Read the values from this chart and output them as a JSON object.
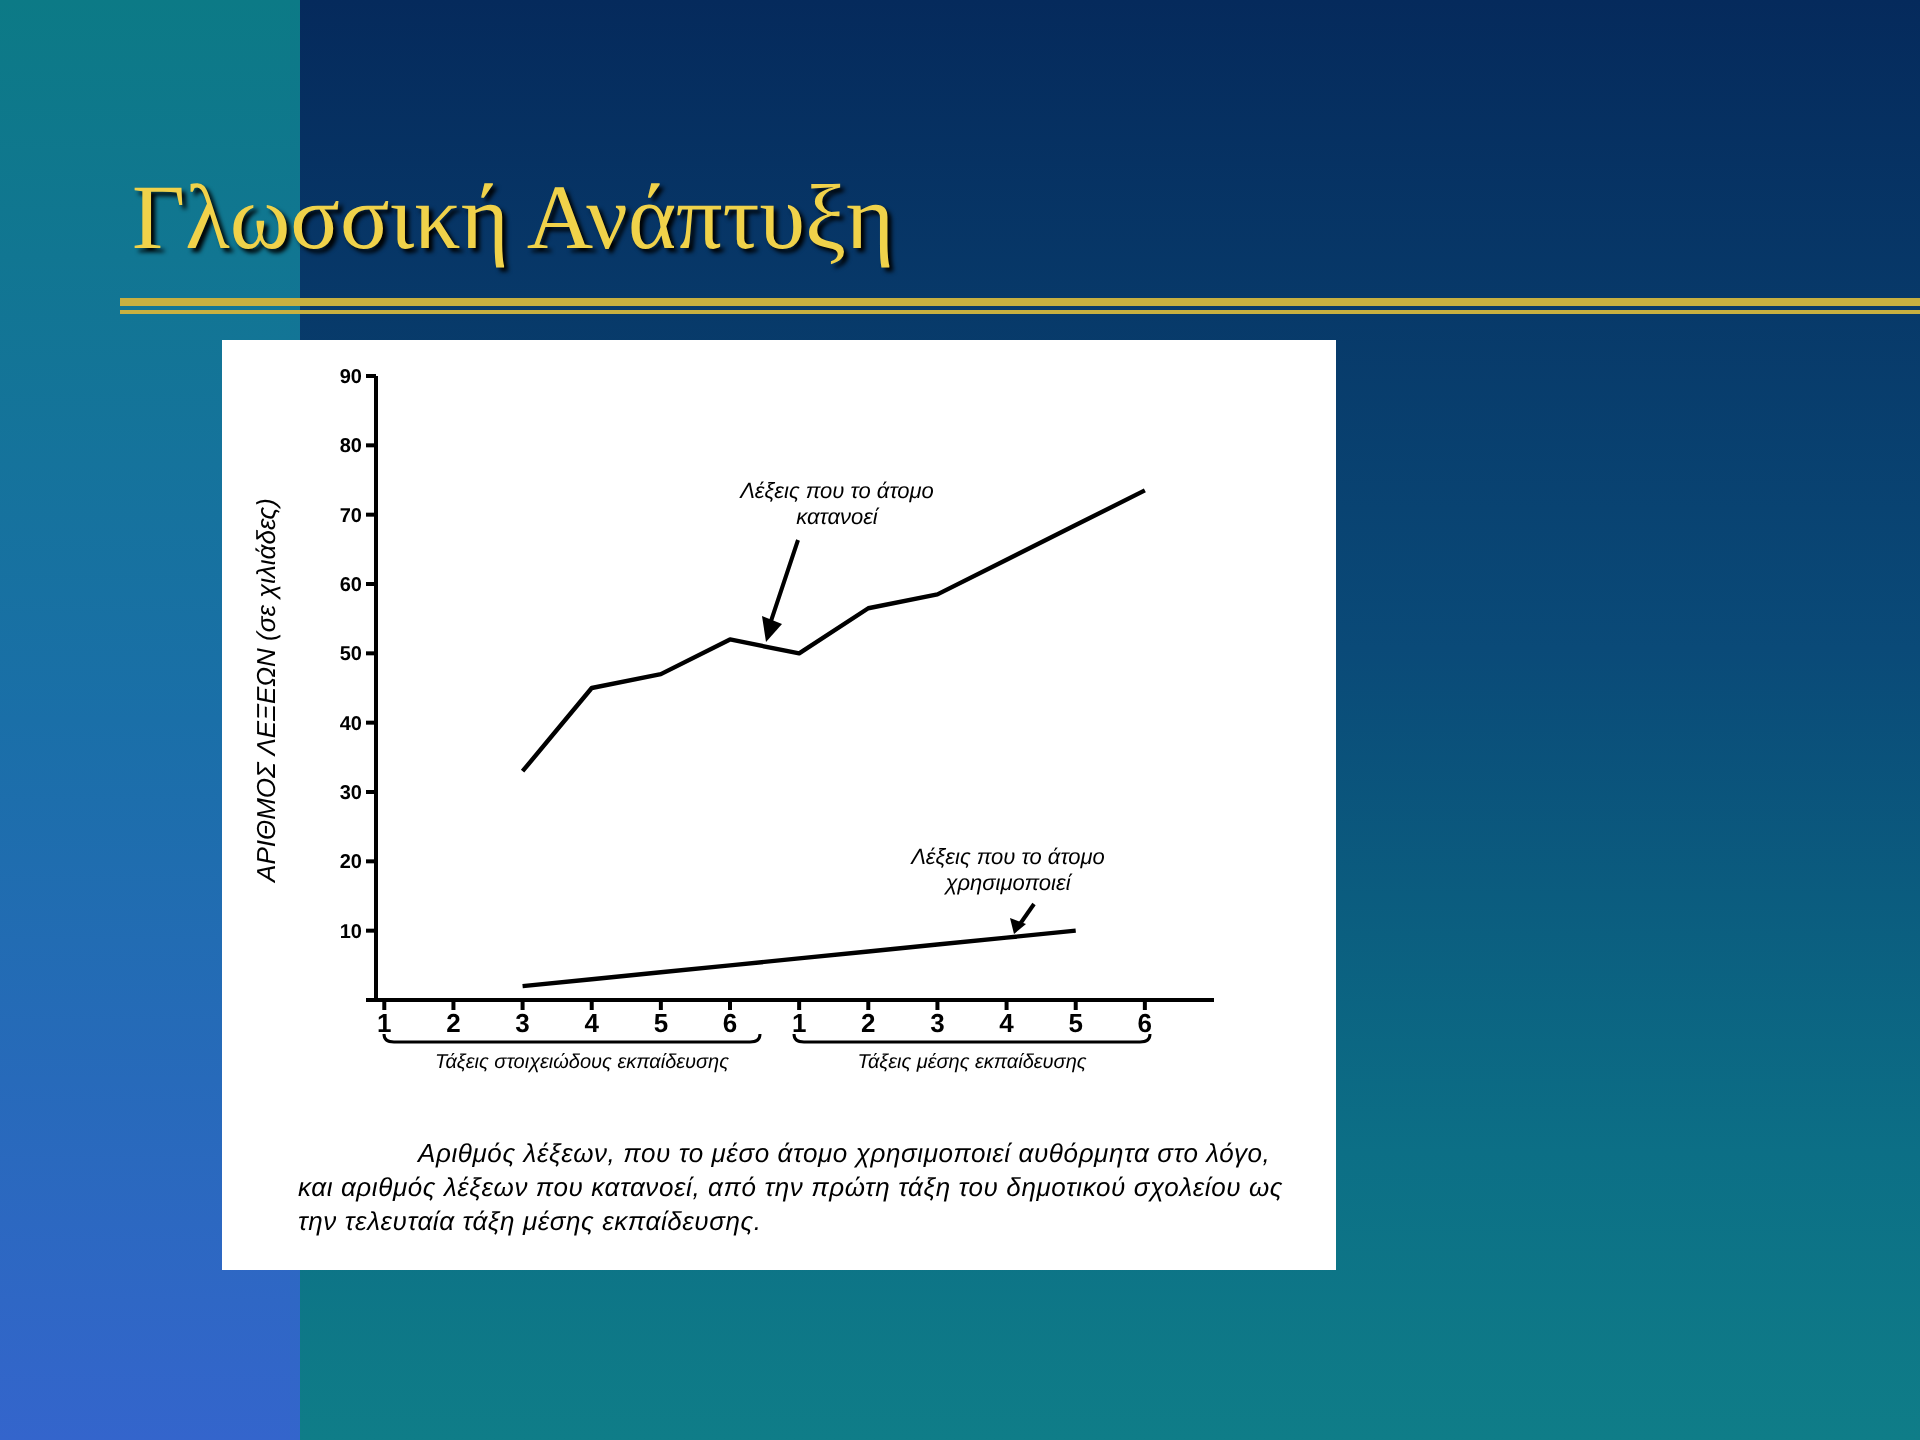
{
  "chart_data": {
    "type": "line",
    "title": "Γλωσσική Ανάπτυξη",
    "ylabel": "ΑΡΙΘΜΟΣ ΛΕΞΕΩΝ (σε χιλιάδες)",
    "categories": [
      "1",
      "2",
      "3",
      "4",
      "5",
      "6",
      "1",
      "2",
      "3",
      "4",
      "5",
      "6"
    ],
    "series": [
      {
        "name": "Λέξεις που το άτομο κατανοεί",
        "color": "#000000",
        "values": [
          null,
          null,
          33,
          45,
          47,
          52,
          50,
          56.5,
          58.5,
          63.5,
          68.5,
          73.5
        ]
      },
      {
        "name": "Λέξεις που το άτομο χρησιμοποιεί",
        "color": "#000000",
        "values": [
          null,
          null,
          2,
          3,
          4,
          5,
          6,
          7,
          8,
          9,
          10,
          null
        ]
      }
    ],
    "ylim": [
      0,
      90
    ],
    "yticks": [
      {
        "value": 0,
        "label": null
      },
      10,
      20,
      30,
      40,
      50,
      60,
      70,
      80,
      90
    ],
    "marker": "none",
    "annotations": [
      "Τάξεις στοιχειώδους εκπαίδευσης",
      "Τάξεις μέσης εκπαίδευσης",
      "Αριθμός λέξεων, που το μέσο άτομο χρησιμοποιεί αυθόρμητα στο λόγο, και αριθμός λέξεων που κατανοεί, από την πρώτη τάξη του δημοτικού σχολείου ως την τελευταία τάξη μέσης εκπαίδευσης."
    ]
  }
}
